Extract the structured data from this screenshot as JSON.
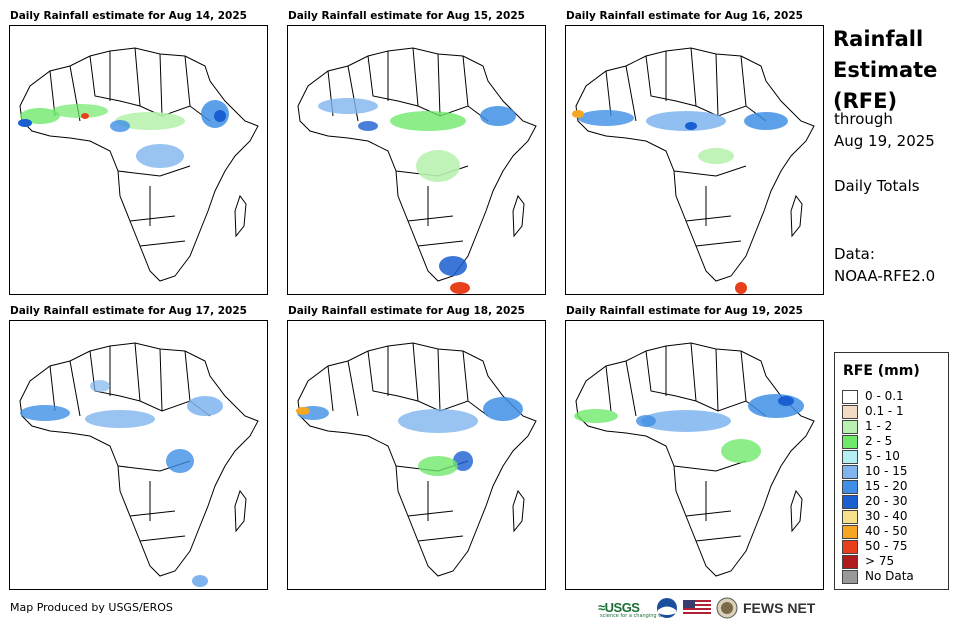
{
  "panels": [
    {
      "title": "Daily Rainfall estimate for Aug 14, 2025"
    },
    {
      "title": "Daily Rainfall estimate for Aug 15, 2025"
    },
    {
      "title": "Daily Rainfall estimate for Aug 16, 2025"
    },
    {
      "title": "Daily Rainfall estimate for Aug 17, 2025"
    },
    {
      "title": "Daily Rainfall estimate for Aug 18, 2025"
    },
    {
      "title": "Daily Rainfall estimate for Aug 19, 2025"
    }
  ],
  "side": {
    "title_line1": "Rainfall",
    "title_line2": "Estimate",
    "title_line3": "(RFE)",
    "through": "through",
    "date": "Aug 19, 2025",
    "totals": "Daily Totals",
    "data_label": "Data:",
    "data_source": "NOAA-RFE2.0"
  },
  "legend": {
    "title": "RFE (mm)",
    "items": [
      {
        "label": "0 - 0.1",
        "color": "#ffffff"
      },
      {
        "label": "0.1 - 1",
        "color": "#f1dcc3"
      },
      {
        "label": "1 - 2",
        "color": "#b9f2b0"
      },
      {
        "label": "2 - 5",
        "color": "#6fe86b"
      },
      {
        "label": "5 - 10",
        "color": "#b3eef5"
      },
      {
        "label": "10 - 15",
        "color": "#7fb4ee"
      },
      {
        "label": "15 - 20",
        "color": "#3f8fe6"
      },
      {
        "label": "20 - 30",
        "color": "#1a5fd1"
      },
      {
        "label": "30 - 40",
        "color": "#f7e08a"
      },
      {
        "label": "40 - 50",
        "color": "#f5a623"
      },
      {
        "label": "50 - 75",
        "color": "#e8401c"
      },
      {
        "label": "> 75",
        "color": "#b01c1c"
      },
      {
        "label": "No Data",
        "color": "#999999"
      }
    ]
  },
  "footer": {
    "credit": "Map Produced by USGS/EROS",
    "usgs": "≈USGS",
    "usgs_tagline": "science for a changing world",
    "fews": "FEWS NET"
  }
}
